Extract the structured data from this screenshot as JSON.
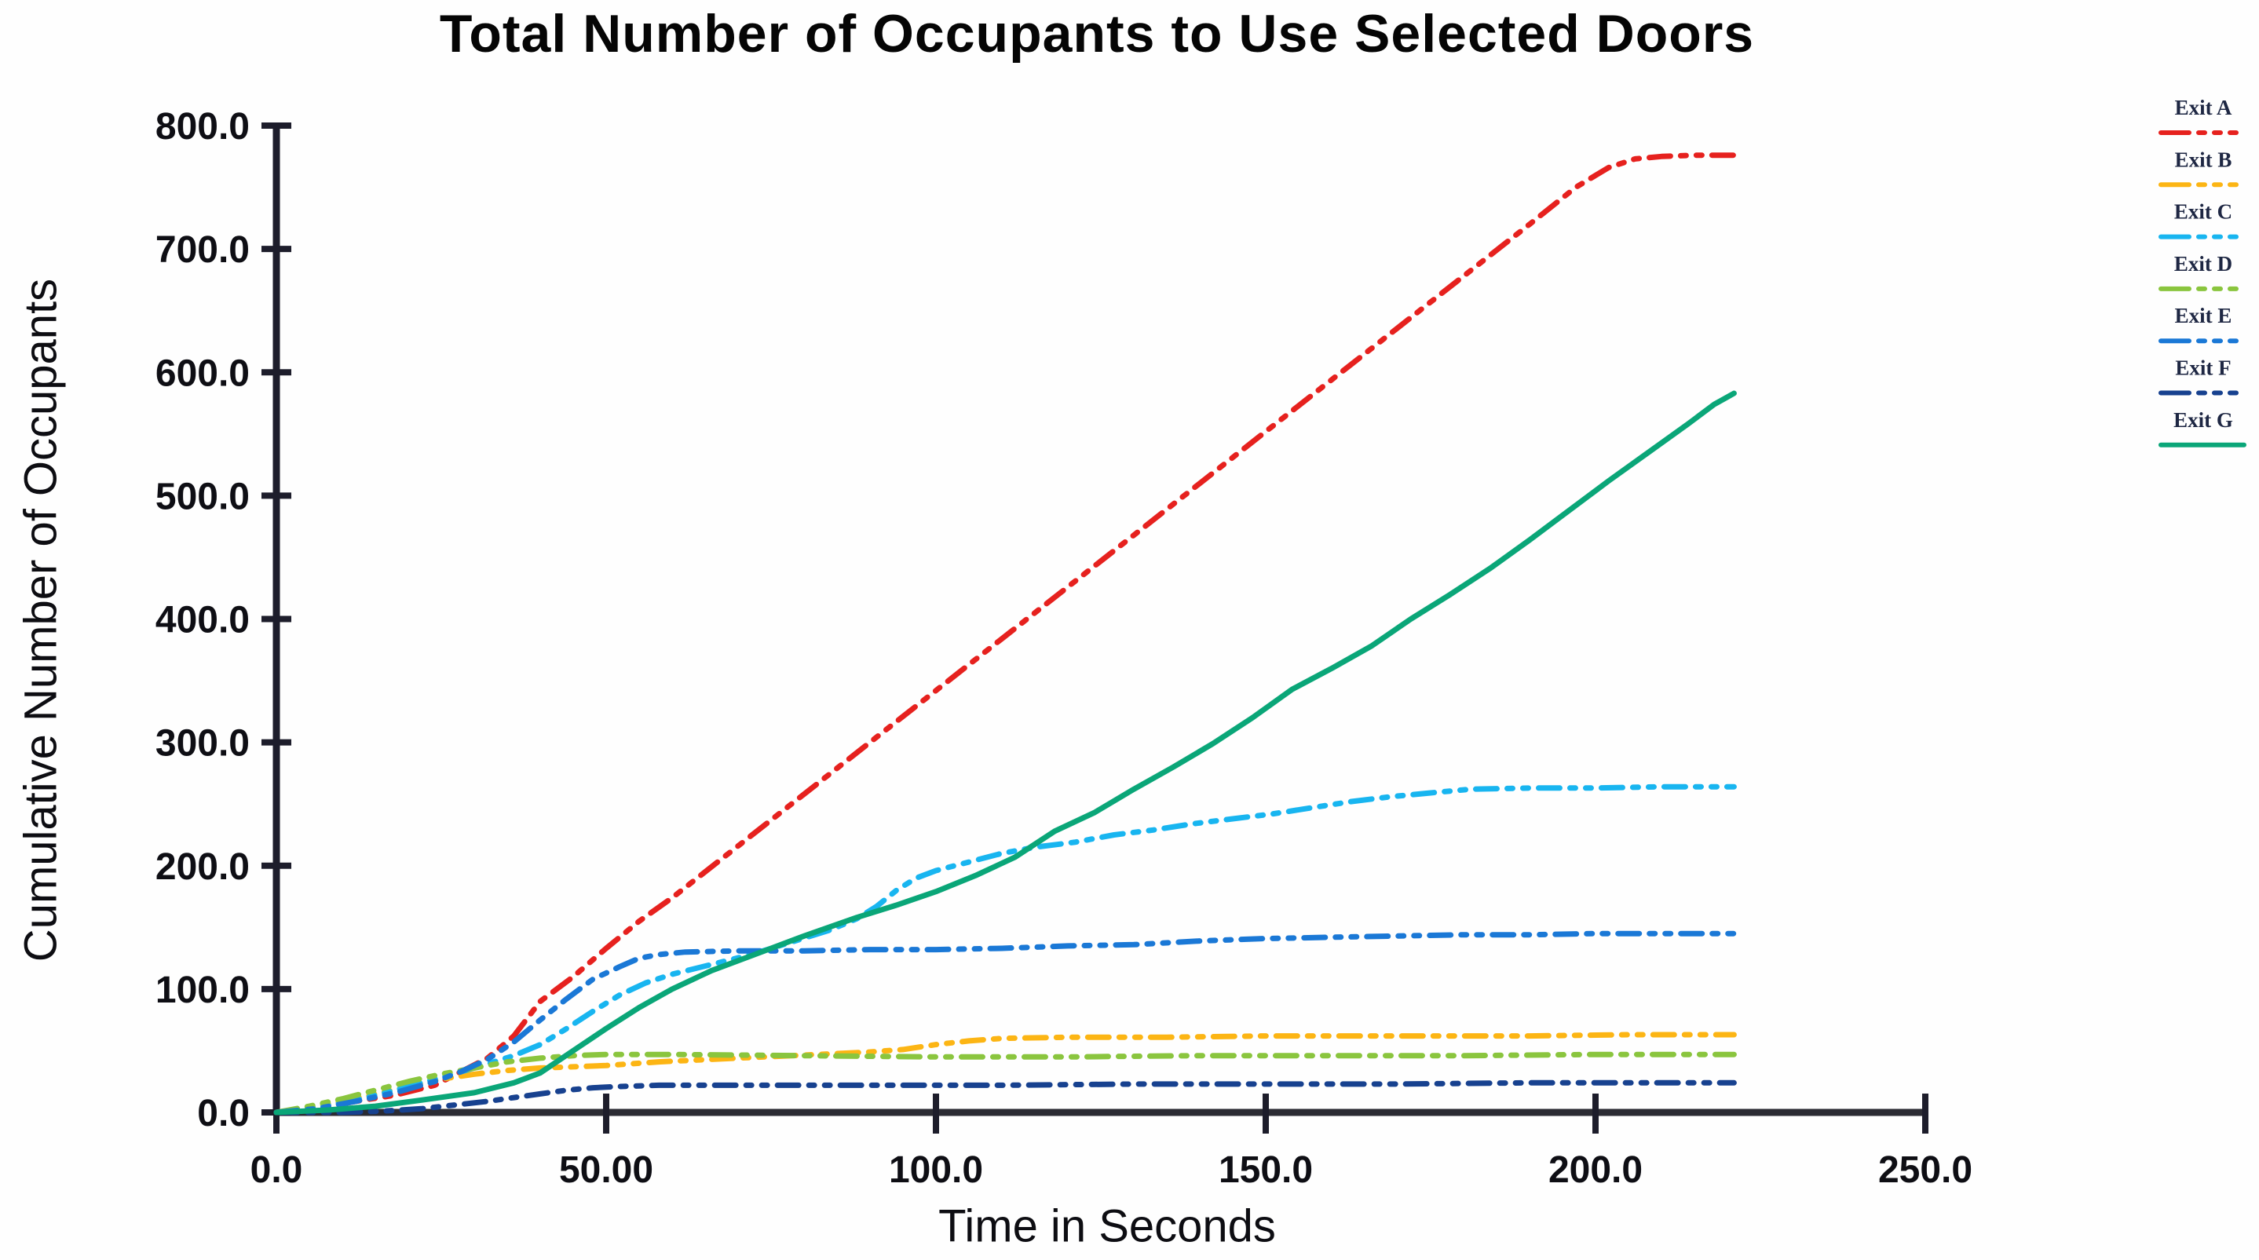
{
  "chart_data": {
    "type": "line",
    "title": "Total Number of Occupants to Use Selected Doors",
    "xlabel": "Time in Seconds",
    "ylabel": "Cumulative Number of Occupants",
    "xlim": [
      0,
      250
    ],
    "ylim": [
      0,
      800
    ],
    "grid": false,
    "legend_position": "right",
    "axis_color": "#1d1d2b",
    "tick_text_color": "#0e0e14",
    "legend_text_color": "#1e2743",
    "x_ticks": {
      "values": [
        0,
        50,
        100,
        150,
        200,
        250
      ],
      "labels": [
        "0.0",
        "50.00",
        "100.0",
        "150.0",
        "200.0",
        "250.0"
      ]
    },
    "y_ticks": {
      "values": [
        0,
        100,
        200,
        300,
        400,
        500,
        600,
        700,
        800
      ],
      "labels": [
        "0.0",
        "100.0",
        "200.0",
        "300.0",
        "400.0",
        "500.0",
        "600.0",
        "700.0",
        "800.0"
      ]
    },
    "series": [
      {
        "name": "Exit A",
        "color": "#e6211e",
        "style": "dash-dot-dot",
        "points": [
          [
            0,
            0
          ],
          [
            6,
            3
          ],
          [
            12,
            9
          ],
          [
            18,
            14
          ],
          [
            24,
            22
          ],
          [
            28,
            33
          ],
          [
            32,
            44
          ],
          [
            36,
            62
          ],
          [
            40,
            90
          ],
          [
            45,
            110
          ],
          [
            50,
            133
          ],
          [
            55,
            155
          ],
          [
            60,
            174
          ],
          [
            70,
            216
          ],
          [
            80,
            258
          ],
          [
            90,
            300
          ],
          [
            100,
            342
          ],
          [
            110,
            384
          ],
          [
            120,
            426
          ],
          [
            130,
            468
          ],
          [
            140,
            510
          ],
          [
            150,
            552
          ],
          [
            160,
            594
          ],
          [
            170,
            636
          ],
          [
            180,
            678
          ],
          [
            190,
            720
          ],
          [
            197,
            750
          ],
          [
            202,
            766
          ],
          [
            206,
            773
          ],
          [
            210,
            775
          ],
          [
            215,
            776
          ],
          [
            221,
            776
          ]
        ]
      },
      {
        "name": "Exit B",
        "color": "#fcb514",
        "style": "dash-dot-dot",
        "points": [
          [
            0,
            0
          ],
          [
            5,
            4
          ],
          [
            10,
            9
          ],
          [
            15,
            15
          ],
          [
            20,
            21
          ],
          [
            25,
            27
          ],
          [
            30,
            31
          ],
          [
            35,
            34
          ],
          [
            40,
            36
          ],
          [
            45,
            37
          ],
          [
            50,
            38
          ],
          [
            58,
            41
          ],
          [
            66,
            43
          ],
          [
            74,
            45
          ],
          [
            82,
            47
          ],
          [
            90,
            49
          ],
          [
            95,
            51
          ],
          [
            100,
            55
          ],
          [
            105,
            58
          ],
          [
            110,
            60
          ],
          [
            120,
            61
          ],
          [
            135,
            61
          ],
          [
            150,
            62
          ],
          [
            170,
            62
          ],
          [
            190,
            62
          ],
          [
            205,
            63
          ],
          [
            221,
            63
          ]
        ]
      },
      {
        "name": "Exit C",
        "color": "#18b5f0",
        "style": "dash-dot-dot",
        "points": [
          [
            0,
            0
          ],
          [
            6,
            4
          ],
          [
            12,
            10
          ],
          [
            18,
            18
          ],
          [
            24,
            27
          ],
          [
            30,
            36
          ],
          [
            36,
            46
          ],
          [
            40,
            55
          ],
          [
            44,
            68
          ],
          [
            48,
            82
          ],
          [
            52,
            95
          ],
          [
            56,
            105
          ],
          [
            60,
            112
          ],
          [
            66,
            120
          ],
          [
            72,
            128
          ],
          [
            78,
            138
          ],
          [
            84,
            148
          ],
          [
            88,
            157
          ],
          [
            91,
            167
          ],
          [
            94,
            180
          ],
          [
            97,
            190
          ],
          [
            100,
            196
          ],
          [
            105,
            203
          ],
          [
            110,
            210
          ],
          [
            115,
            215
          ],
          [
            121,
            219
          ],
          [
            127,
            225
          ],
          [
            133,
            229
          ],
          [
            139,
            234
          ],
          [
            145,
            238
          ],
          [
            151,
            242
          ],
          [
            157,
            247
          ],
          [
            163,
            252
          ],
          [
            169,
            256
          ],
          [
            175,
            259
          ],
          [
            181,
            262
          ],
          [
            190,
            263
          ],
          [
            200,
            263
          ],
          [
            210,
            264
          ],
          [
            221,
            264
          ]
        ]
      },
      {
        "name": "Exit D",
        "color": "#8ac53e",
        "style": "dash-dot-dot",
        "points": [
          [
            0,
            0
          ],
          [
            5,
            5
          ],
          [
            10,
            11
          ],
          [
            15,
            18
          ],
          [
            20,
            25
          ],
          [
            25,
            31
          ],
          [
            30,
            36
          ],
          [
            35,
            41
          ],
          [
            40,
            44
          ],
          [
            45,
            46
          ],
          [
            50,
            47
          ],
          [
            60,
            47
          ],
          [
            80,
            46
          ],
          [
            100,
            45
          ],
          [
            120,
            45
          ],
          [
            140,
            46
          ],
          [
            160,
            46
          ],
          [
            180,
            46
          ],
          [
            200,
            47
          ],
          [
            221,
            47
          ]
        ]
      },
      {
        "name": "Exit E",
        "color": "#1a78d6",
        "style": "dash-dot-dot",
        "points": [
          [
            0,
            0
          ],
          [
            6,
            3
          ],
          [
            12,
            9
          ],
          [
            18,
            16
          ],
          [
            24,
            25
          ],
          [
            28,
            33
          ],
          [
            32,
            43
          ],
          [
            36,
            57
          ],
          [
            40,
            75
          ],
          [
            44,
            92
          ],
          [
            48,
            108
          ],
          [
            52,
            118
          ],
          [
            55,
            125
          ],
          [
            58,
            128
          ],
          [
            62,
            130
          ],
          [
            70,
            131
          ],
          [
            80,
            131
          ],
          [
            90,
            132
          ],
          [
            100,
            132
          ],
          [
            110,
            133
          ],
          [
            120,
            135
          ],
          [
            130,
            136
          ],
          [
            140,
            139
          ],
          [
            150,
            141
          ],
          [
            160,
            142
          ],
          [
            170,
            143
          ],
          [
            180,
            144
          ],
          [
            190,
            144
          ],
          [
            200,
            145
          ],
          [
            210,
            145
          ],
          [
            221,
            145
          ]
        ]
      },
      {
        "name": "Exit F",
        "color": "#17418f",
        "style": "dash-dot-dot",
        "points": [
          [
            0,
            0
          ],
          [
            10,
            0
          ],
          [
            16,
            1
          ],
          [
            22,
            3
          ],
          [
            27,
            6
          ],
          [
            32,
            9
          ],
          [
            36,
            12
          ],
          [
            40,
            15
          ],
          [
            44,
            18
          ],
          [
            48,
            20
          ],
          [
            52,
            21
          ],
          [
            58,
            22
          ],
          [
            70,
            22
          ],
          [
            90,
            22
          ],
          [
            110,
            22
          ],
          [
            130,
            23
          ],
          [
            150,
            23
          ],
          [
            170,
            23
          ],
          [
            190,
            24
          ],
          [
            205,
            24
          ],
          [
            221,
            24
          ]
        ]
      },
      {
        "name": "Exit G",
        "color": "#0aa678",
        "style": "solid",
        "points": [
          [
            0,
            0
          ],
          [
            8,
            2
          ],
          [
            15,
            5
          ],
          [
            22,
            10
          ],
          [
            30,
            16
          ],
          [
            36,
            24
          ],
          [
            40,
            32
          ],
          [
            45,
            50
          ],
          [
            50,
            68
          ],
          [
            55,
            85
          ],
          [
            60,
            100
          ],
          [
            66,
            115
          ],
          [
            72,
            127
          ],
          [
            80,
            143
          ],
          [
            88,
            158
          ],
          [
            94,
            168
          ],
          [
            100,
            179
          ],
          [
            106,
            192
          ],
          [
            112,
            207
          ],
          [
            118,
            228
          ],
          [
            124,
            243
          ],
          [
            130,
            262
          ],
          [
            136,
            280
          ],
          [
            142,
            299
          ],
          [
            148,
            320
          ],
          [
            154,
            343
          ],
          [
            160,
            360
          ],
          [
            166,
            378
          ],
          [
            172,
            400
          ],
          [
            178,
            420
          ],
          [
            184,
            441
          ],
          [
            190,
            464
          ],
          [
            196,
            488
          ],
          [
            202,
            512
          ],
          [
            208,
            535
          ],
          [
            214,
            558
          ],
          [
            218,
            574
          ],
          [
            221,
            583
          ]
        ]
      }
    ]
  }
}
